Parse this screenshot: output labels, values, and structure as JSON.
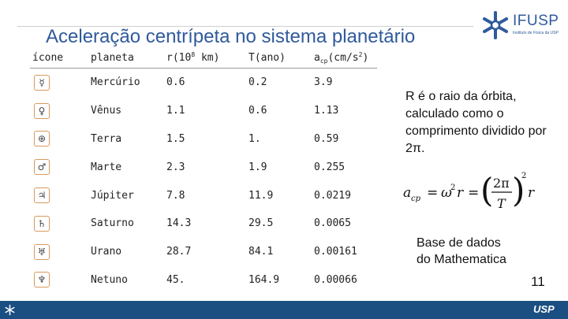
{
  "slide": {
    "title": "Aceleração centrípeta no sistema planetário",
    "number": "11"
  },
  "logo": {
    "name": "IFUSP",
    "tagline": "Instituto de Física da USP"
  },
  "table": {
    "headers": {
      "icon": "ícone",
      "planet": "planeta",
      "r": "r(10",
      "r_exp": "8",
      "r_unit": " km)",
      "t": "T(ano)",
      "acp": "a",
      "acp_sub": "cp",
      "acp_unit": "(cm/s",
      "acp_unit_exp": "2",
      "acp_close": ")"
    },
    "rows": [
      {
        "symbol": "☿",
        "planet": "Mercúrio",
        "r": "0.6",
        "t": "0.2",
        "acp": "3.9"
      },
      {
        "symbol": "♀",
        "planet": "Vênus",
        "r": "1.1",
        "t": "0.6",
        "acp": "1.13"
      },
      {
        "symbol": "⊕",
        "planet": "Terra",
        "r": "1.5",
        "t": "1.",
        "acp": "0.59"
      },
      {
        "symbol": "♂",
        "planet": "Marte",
        "r": "2.3",
        "t": "1.9",
        "acp": "0.255"
      },
      {
        "symbol": "♃",
        "planet": "Júpiter",
        "r": "7.8",
        "t": "11.9",
        "acp": "0.0219"
      },
      {
        "symbol": "♄",
        "planet": "Saturno",
        "r": "14.3",
        "t": "29.5",
        "acp": "0.0065"
      },
      {
        "symbol": "♅",
        "planet": "Urano",
        "r": "28.7",
        "t": "84.1",
        "acp": "0.00161"
      },
      {
        "symbol": "♆",
        "planet": "Netuno",
        "r": "45.",
        "t": "164.9",
        "acp": "0.00066"
      }
    ]
  },
  "description": {
    "text": "R é o raio da órbita, calculado como o comprimento dividido por 2π."
  },
  "formula": {
    "lhs": "a",
    "lhs_sub": "cp",
    "eq1": "=",
    "omega": "ω",
    "omega_exp": "2",
    "r": "r",
    "eq2": "=",
    "numerator": "2π",
    "denominator": "T",
    "power": "2",
    "r2": "r"
  },
  "source": {
    "line1": "Base de dados",
    "line2": "do Mathematica"
  },
  "footer": {
    "brand": "USP"
  },
  "colors": {
    "title": "#2f5a9c",
    "footer": "#1b4f82",
    "icon_border": "#d89a5c"
  }
}
